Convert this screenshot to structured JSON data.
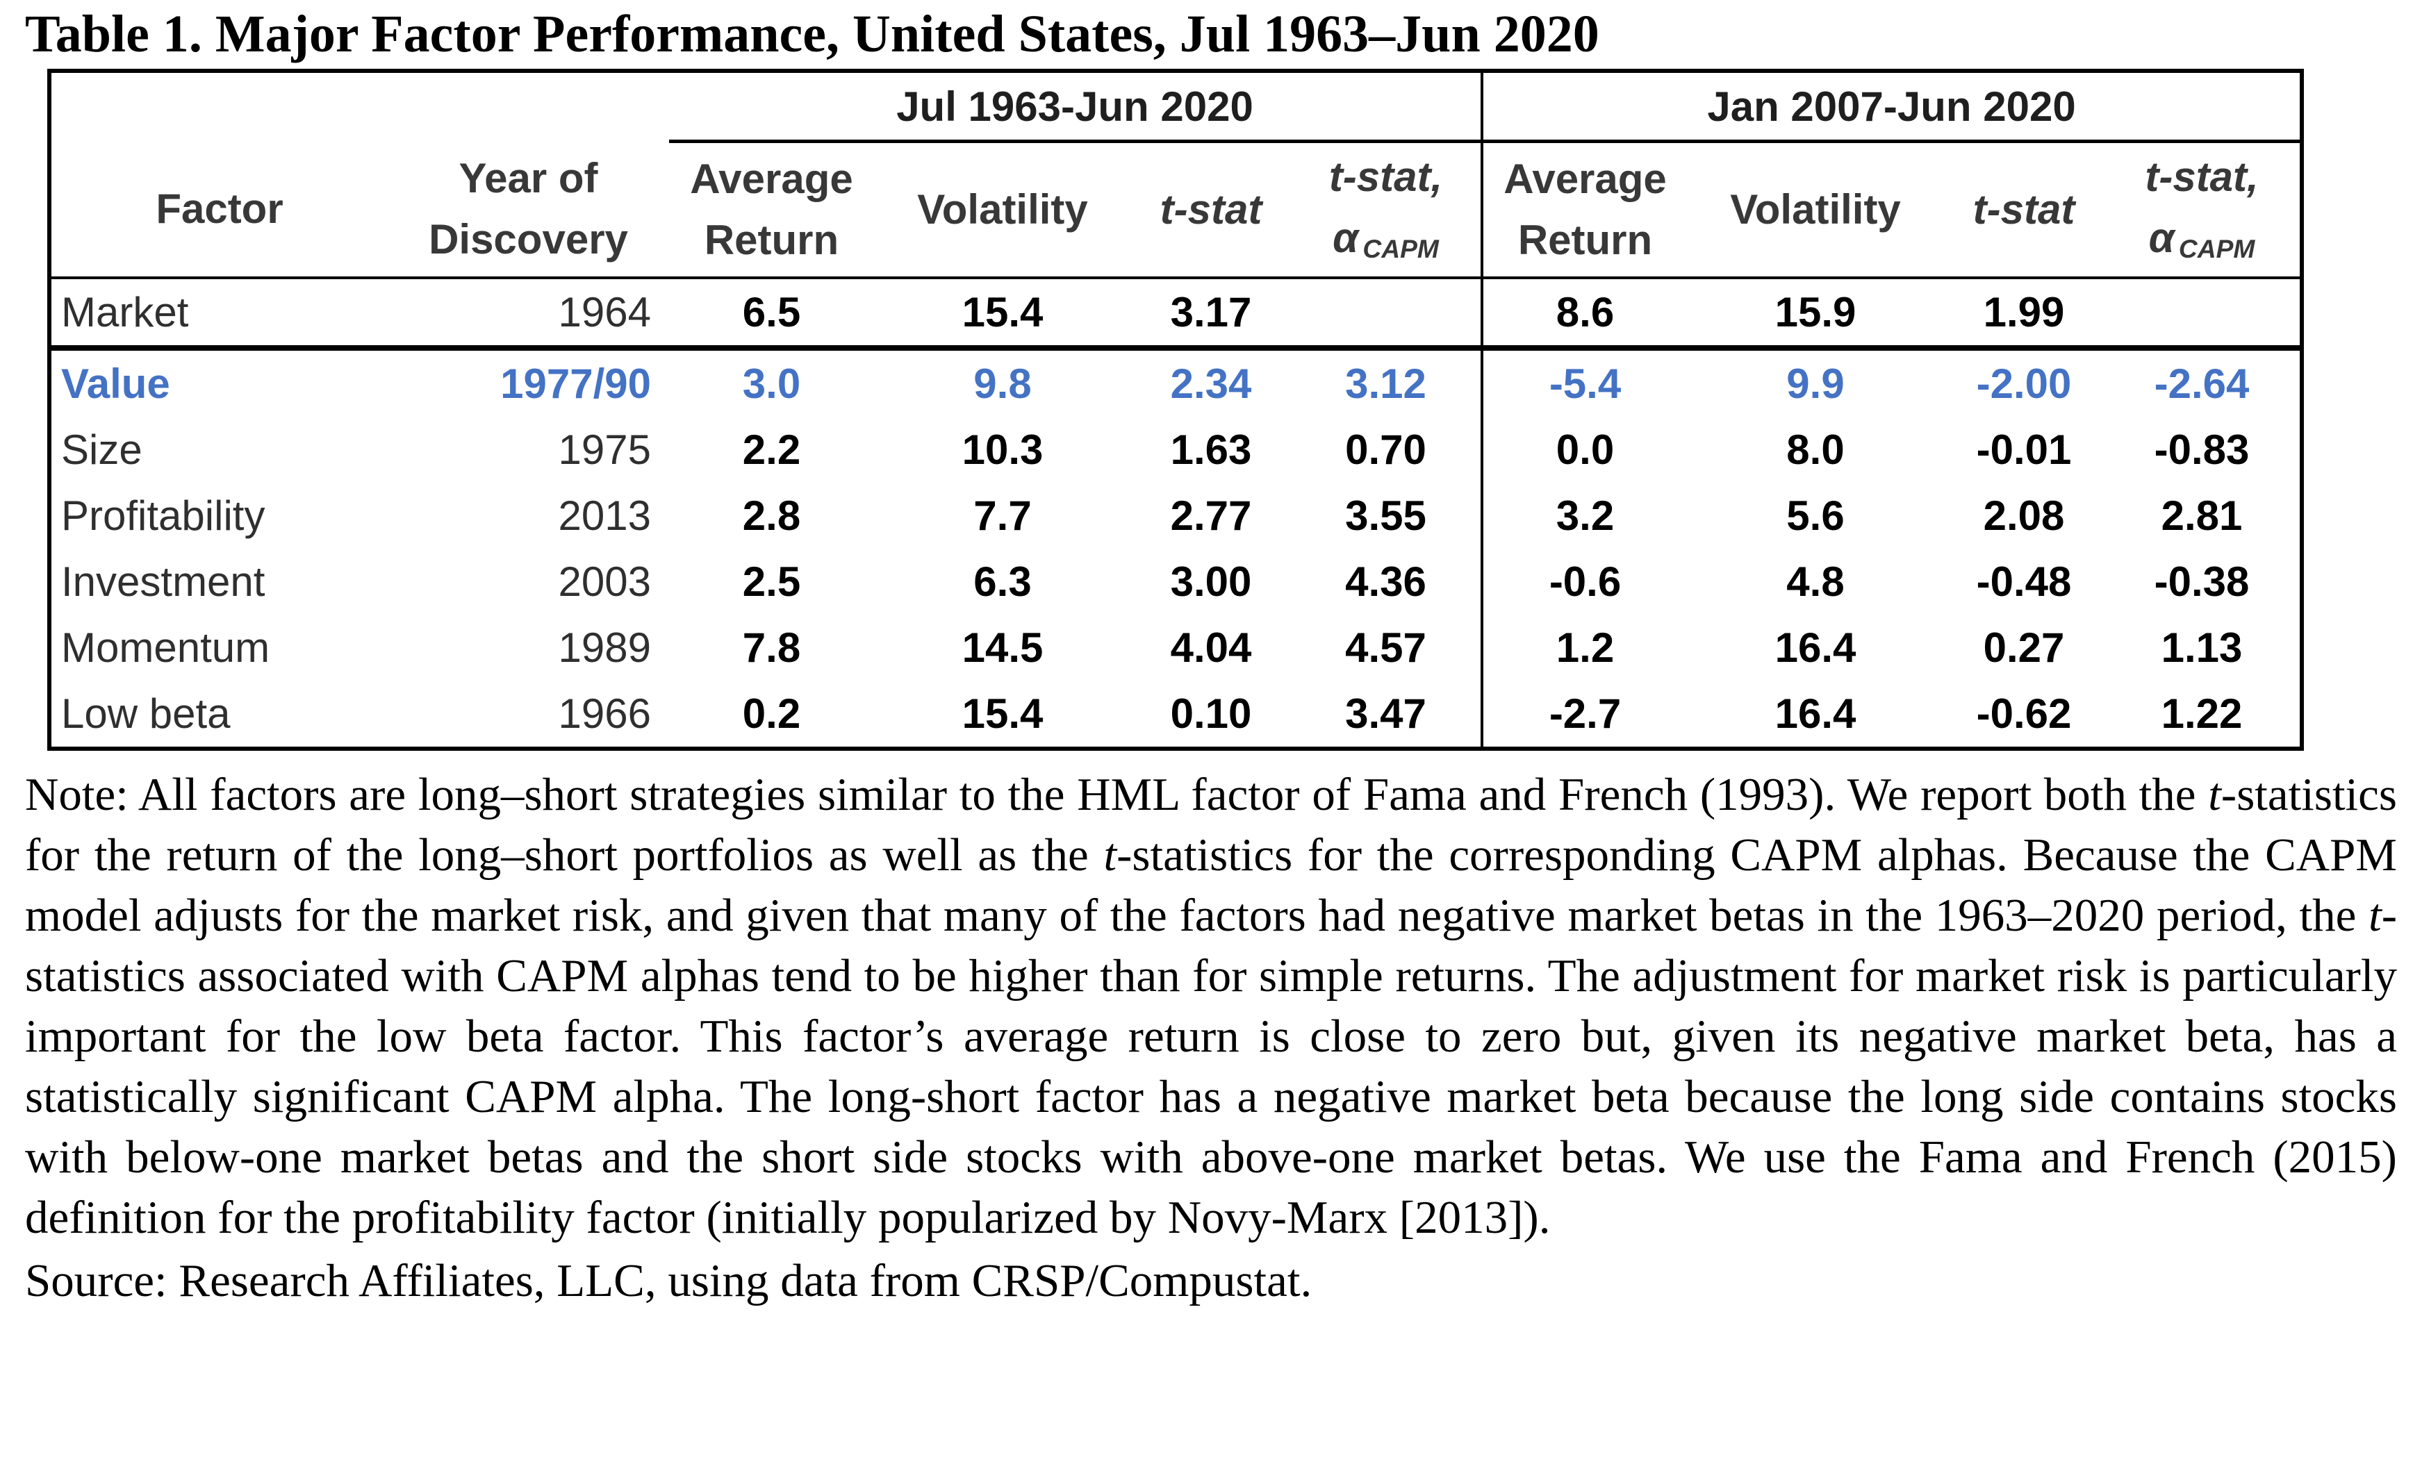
{
  "title": "Table 1. Major Factor Performance, United States, Jul 1963–Jun 2020",
  "table": {
    "highlight_color": "#4472C4",
    "group_headers": {
      "period1": "Jul 1963-Jun 2020",
      "period2": "Jan 2007-Jun 2020"
    },
    "columns": {
      "factor": "Factor",
      "year_line1": "Year of",
      "year_line2": "Discovery",
      "avg_line1": "Average",
      "avg_line2": "Return",
      "volatility": "Volatility",
      "tstat": "t-stat",
      "tstat_alpha_line1": "t-stat,",
      "alpha": "α",
      "alpha_sub": "CAPM"
    },
    "rows": [
      {
        "factor": "Market",
        "year": "1964",
        "p1": {
          "avg": "6.5",
          "vol": "15.4",
          "tstat": "3.17",
          "talpha": ""
        },
        "p2": {
          "avg": "8.6",
          "vol": "15.9",
          "tstat": "1.99",
          "talpha": ""
        }
      },
      {
        "factor": "Value",
        "year": "1977/90",
        "p1": {
          "avg": "3.0",
          "vol": "9.8",
          "tstat": "2.34",
          "talpha": "3.12"
        },
        "p2": {
          "avg": "-5.4",
          "vol": "9.9",
          "tstat": "-2.00",
          "talpha": "-2.64"
        }
      },
      {
        "factor": "Size",
        "year": "1975",
        "p1": {
          "avg": "2.2",
          "vol": "10.3",
          "tstat": "1.63",
          "talpha": "0.70"
        },
        "p2": {
          "avg": "0.0",
          "vol": "8.0",
          "tstat": "-0.01",
          "talpha": "-0.83"
        }
      },
      {
        "factor": "Profitability",
        "year": "2013",
        "p1": {
          "avg": "2.8",
          "vol": "7.7",
          "tstat": "2.77",
          "talpha": "3.55"
        },
        "p2": {
          "avg": "3.2",
          "vol": "5.6",
          "tstat": "2.08",
          "talpha": "2.81"
        }
      },
      {
        "factor": "Investment",
        "year": "2003",
        "p1": {
          "avg": "2.5",
          "vol": "6.3",
          "tstat": "3.00",
          "talpha": "4.36"
        },
        "p2": {
          "avg": "-0.6",
          "vol": "4.8",
          "tstat": "-0.48",
          "talpha": "-0.38"
        }
      },
      {
        "factor": "Momentum",
        "year": "1989",
        "p1": {
          "avg": "7.8",
          "vol": "14.5",
          "tstat": "4.04",
          "talpha": "4.57"
        },
        "p2": {
          "avg": "1.2",
          "vol": "16.4",
          "tstat": "0.27",
          "talpha": "1.13"
        }
      },
      {
        "factor": "Low beta",
        "year": "1966",
        "p1": {
          "avg": "0.2",
          "vol": "15.4",
          "tstat": "0.10",
          "talpha": "3.47"
        },
        "p2": {
          "avg": "-2.7",
          "vol": "16.4",
          "tstat": "-0.62",
          "talpha": "1.22"
        }
      }
    ]
  },
  "note": {
    "segments": [
      {
        "t": "Note: All factors are long–short strategies similar to the HML factor of Fama and French (1993). We report both the ",
        "i": false
      },
      {
        "t": "t",
        "i": true
      },
      {
        "t": "-statistics for the return of the long–short portfolios as well as the ",
        "i": false
      },
      {
        "t": "t",
        "i": true
      },
      {
        "t": "-statistics for the corresponding CAPM alphas. Because the CAPM model adjusts for the market risk, and given that many of the factors had negative market betas in the 1963–2020 period, the ",
        "i": false
      },
      {
        "t": "t",
        "i": true
      },
      {
        "t": "-statistics associated with CAPM alphas tend to be higher than for simple returns. The adjustment for market risk is particularly important for the low beta factor. This factor’s average return is close to zero but, given its negative market beta, has a statistically significant CAPM alpha. The long-short factor has a negative market beta because the long side contains stocks with below-one market betas and the short side stocks with above-one market betas. We use the Fama and French (2015) definition for the profitability factor (initially popularized by Novy-Marx [2013]).",
        "i": false
      }
    ]
  },
  "source": "Source: Research Affiliates, LLC, using data from CRSP/Compustat."
}
